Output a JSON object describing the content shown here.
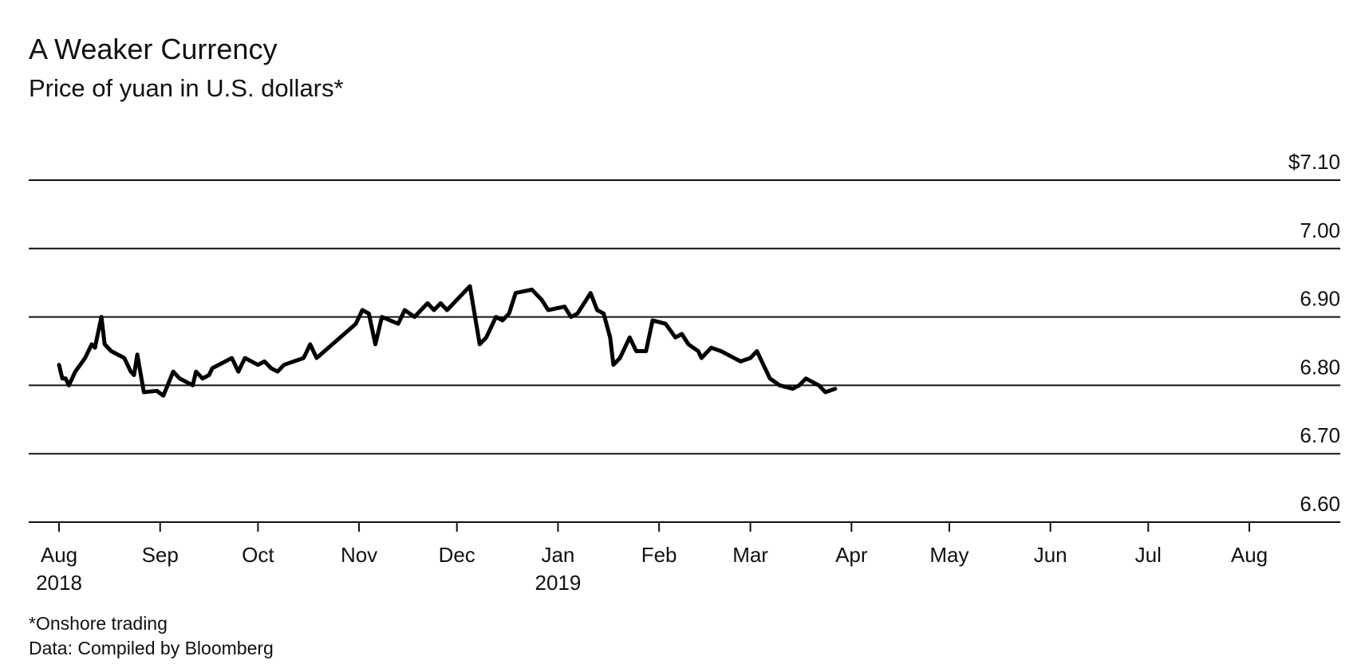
{
  "chart_data": {
    "type": "line",
    "title": "A Weaker Currency",
    "subtitle": "Price of yuan in U.S. dollars*",
    "y_ticks": [
      {
        "value": 7.1,
        "label": "$7.10"
      },
      {
        "value": 7.0,
        "label": "7.00"
      },
      {
        "value": 6.9,
        "label": "6.90"
      },
      {
        "value": 6.8,
        "label": "6.80"
      },
      {
        "value": 6.7,
        "label": "6.70"
      },
      {
        "value": 6.6,
        "label": "6.60"
      }
    ],
    "ylim": [
      6.6,
      7.1
    ],
    "xlim": [
      "2018-08-01",
      "2019-08-22"
    ],
    "x_ticks": [
      {
        "date": "2018-08-01",
        "label": "Aug",
        "sublabel": "2018"
      },
      {
        "date": "2018-09-01",
        "label": "Sep",
        "sublabel": ""
      },
      {
        "date": "2018-10-01",
        "label": "Oct",
        "sublabel": ""
      },
      {
        "date": "2018-11-01",
        "label": "Nov",
        "sublabel": ""
      },
      {
        "date": "2018-12-01",
        "label": "Dec",
        "sublabel": ""
      },
      {
        "date": "2019-01-01",
        "label": "Jan",
        "sublabel": "2019"
      },
      {
        "date": "2019-02-01",
        "label": "Feb",
        "sublabel": ""
      },
      {
        "date": "2019-03-01",
        "label": "Mar",
        "sublabel": ""
      },
      {
        "date": "2019-04-01",
        "label": "Apr",
        "sublabel": ""
      },
      {
        "date": "2019-05-01",
        "label": "May",
        "sublabel": ""
      },
      {
        "date": "2019-06-01",
        "label": "Jun",
        "sublabel": ""
      },
      {
        "date": "2019-07-01",
        "label": "Jul",
        "sublabel": ""
      },
      {
        "date": "2019-08-01",
        "label": "Aug",
        "sublabel": ""
      }
    ],
    "grid": true,
    "line_color": "#000000",
    "series": [
      {
        "points": [
          [
            "2018-08-01",
            6.83
          ],
          [
            "2018-08-02",
            6.81
          ],
          [
            "2018-08-03",
            6.81
          ],
          [
            "2018-08-04",
            6.8
          ],
          [
            "2018-08-06",
            6.82
          ],
          [
            "2018-08-09",
            6.84
          ],
          [
            "2018-08-11",
            6.86
          ],
          [
            "2018-08-12",
            6.855
          ],
          [
            "2018-08-14",
            6.9
          ],
          [
            "2018-08-15",
            6.86
          ],
          [
            "2018-08-17",
            6.85
          ],
          [
            "2018-08-21",
            6.84
          ],
          [
            "2018-08-23",
            6.82
          ],
          [
            "2018-08-24",
            6.815
          ],
          [
            "2018-08-25",
            6.845
          ],
          [
            "2018-08-27",
            6.79
          ],
          [
            "2018-08-31",
            6.792
          ],
          [
            "2018-09-02",
            6.785
          ],
          [
            "2018-09-05",
            6.82
          ],
          [
            "2018-09-07",
            6.81
          ],
          [
            "2018-09-11",
            6.8
          ],
          [
            "2018-09-12",
            6.82
          ],
          [
            "2018-09-14",
            6.81
          ],
          [
            "2018-09-16",
            6.815
          ],
          [
            "2018-09-17",
            6.825
          ],
          [
            "2018-09-21",
            6.835
          ],
          [
            "2018-09-23",
            6.84
          ],
          [
            "2018-09-25",
            6.82
          ],
          [
            "2018-09-27",
            6.84
          ],
          [
            "2018-10-01",
            6.83
          ],
          [
            "2018-10-03",
            6.835
          ],
          [
            "2018-10-05",
            6.825
          ],
          [
            "2018-10-07",
            6.82
          ],
          [
            "2018-10-09",
            6.83
          ],
          [
            "2018-10-15",
            6.84
          ],
          [
            "2018-10-17",
            6.86
          ],
          [
            "2018-10-19",
            6.84
          ],
          [
            "2018-10-31",
            6.89
          ],
          [
            "2018-11-02",
            6.91
          ],
          [
            "2018-11-04",
            6.905
          ],
          [
            "2018-11-06",
            6.86
          ],
          [
            "2018-11-08",
            6.9
          ],
          [
            "2018-11-13",
            6.89
          ],
          [
            "2018-11-15",
            6.91
          ],
          [
            "2018-11-18",
            6.9
          ],
          [
            "2018-11-20",
            6.91
          ],
          [
            "2018-11-22",
            6.92
          ],
          [
            "2018-11-24",
            6.91
          ],
          [
            "2018-11-26",
            6.92
          ],
          [
            "2018-11-28",
            6.91
          ],
          [
            "2018-12-05",
            6.945
          ],
          [
            "2018-12-08",
            6.86
          ],
          [
            "2018-12-10",
            6.87
          ],
          [
            "2018-12-13",
            6.9
          ],
          [
            "2018-12-15",
            6.895
          ],
          [
            "2018-12-17",
            6.905
          ],
          [
            "2018-12-19",
            6.935
          ],
          [
            "2018-12-24",
            6.94
          ],
          [
            "2018-12-27",
            6.925
          ],
          [
            "2018-12-29",
            6.91
          ],
          [
            "2019-01-03",
            6.915
          ],
          [
            "2019-01-05",
            6.9
          ],
          [
            "2019-01-07",
            6.905
          ],
          [
            "2019-01-11",
            6.935
          ],
          [
            "2019-01-13",
            6.91
          ],
          [
            "2019-01-15",
            6.905
          ],
          [
            "2019-01-17",
            6.87
          ],
          [
            "2019-01-18",
            6.83
          ],
          [
            "2019-01-20",
            6.84
          ],
          [
            "2019-01-23",
            6.87
          ],
          [
            "2019-01-25",
            6.85
          ],
          [
            "2019-01-28",
            6.85
          ],
          [
            "2019-01-30",
            6.895
          ],
          [
            "2019-02-03",
            6.89
          ],
          [
            "2019-02-06",
            6.87
          ],
          [
            "2019-02-08",
            6.875
          ],
          [
            "2019-02-10",
            6.86
          ],
          [
            "2019-02-13",
            6.85
          ],
          [
            "2019-02-14",
            6.84
          ],
          [
            "2019-02-17",
            6.855
          ],
          [
            "2019-02-20",
            6.85
          ],
          [
            "2019-02-22",
            6.845
          ],
          [
            "2019-02-24",
            6.84
          ],
          [
            "2019-02-26",
            6.835
          ],
          [
            "2019-03-01",
            6.84
          ],
          [
            "2019-03-03",
            6.85
          ],
          [
            "2019-03-05",
            6.83
          ],
          [
            "2019-03-07",
            6.81
          ],
          [
            "2019-03-10",
            6.8
          ],
          [
            "2019-03-14",
            6.795
          ],
          [
            "2019-03-16",
            6.8
          ],
          [
            "2019-03-18",
            6.81
          ],
          [
            "2019-03-20",
            6.805
          ],
          [
            "2019-03-22",
            6.8
          ],
          [
            "2019-03-24",
            6.79
          ],
          [
            "2019-03-27",
            6.795
          ]
        ]
      }
    ],
    "note": "*Onshore trading",
    "source": "Data: Compiled by Bloomberg"
  }
}
